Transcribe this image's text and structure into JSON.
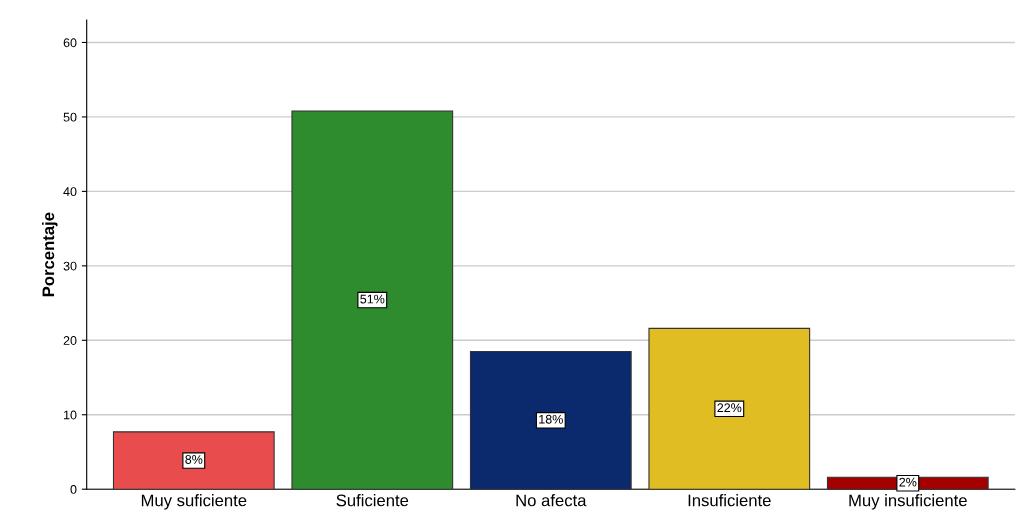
{
  "chart_data": {
    "type": "bar",
    "ylabel": "Porcentaje",
    "categories": [
      "Muy suficiente",
      "Suficiente",
      "No afecta",
      "Insuficiente",
      "Muy insuficiente"
    ],
    "values": [
      7.7,
      50.8,
      18.5,
      21.6,
      1.6
    ],
    "colors": [
      "#e84c4c",
      "#2e8b2e",
      "#0b2a6e",
      "#e0bd22",
      "#a50000"
    ],
    "value_labels": [
      "8%",
      "51%",
      "18%",
      "22%",
      "2%"
    ],
    "ylim": [
      0,
      63
    ],
    "yticks": [
      0,
      10,
      20,
      30,
      40,
      50,
      60
    ],
    "grid": "y"
  }
}
